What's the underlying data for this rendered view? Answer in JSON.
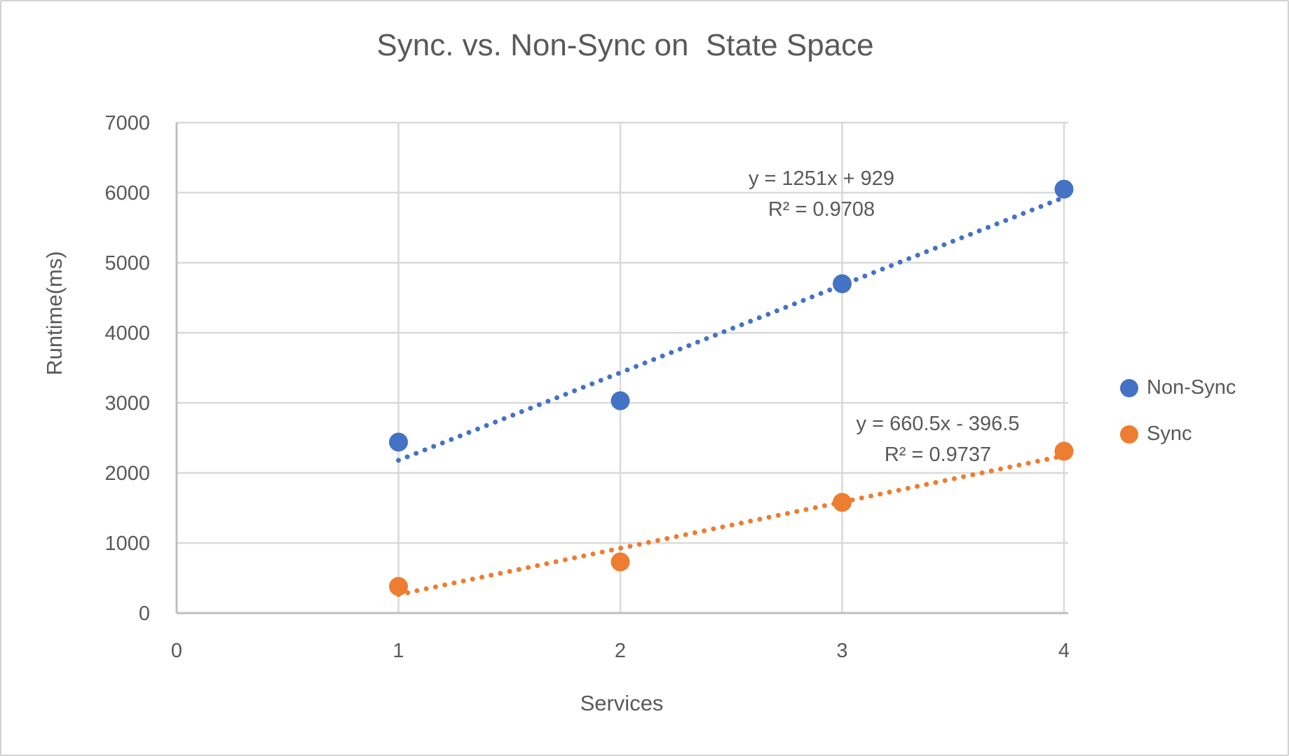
{
  "chart_data": {
    "type": "scatter",
    "title": "Sync. vs. Non-Sync on  State Space",
    "xlabel": "Services",
    "ylabel": "Runtime(ms)",
    "xlim": [
      0,
      4
    ],
    "ylim": [
      0,
      7000
    ],
    "x_ticks": [
      "0",
      "1",
      "2",
      "3",
      "4"
    ],
    "y_ticks": [
      "0",
      "1000",
      "2000",
      "3000",
      "4000",
      "5000",
      "6000",
      "7000"
    ],
    "grid": true,
    "legend_position": "right-middle",
    "series": [
      {
        "name": "Non-Sync",
        "color": "#4472C4",
        "points": [
          {
            "x": 1,
            "y": 2440
          },
          {
            "x": 2,
            "y": 3030
          },
          {
            "x": 3,
            "y": 4700
          },
          {
            "x": 4,
            "y": 6050
          }
        ],
        "trendline": {
          "type": "linear",
          "style": "dotted",
          "slope": 1251,
          "intercept": 929,
          "r_squared": 0.9708,
          "x_range": [
            1,
            4
          ],
          "equation_label": "y = 1251x + 929",
          "r2_label": "R² = 0.9708"
        }
      },
      {
        "name": "Sync",
        "color": "#ED7D31",
        "points": [
          {
            "x": 1,
            "y": 380
          },
          {
            "x": 2,
            "y": 730
          },
          {
            "x": 3,
            "y": 1580
          },
          {
            "x": 4,
            "y": 2310
          }
        ],
        "trendline": {
          "type": "linear",
          "style": "dotted",
          "slope": 660.5,
          "intercept": -396.5,
          "r_squared": 0.9737,
          "x_range": [
            1,
            4
          ],
          "equation_label": "y = 660.5x - 396.5",
          "r2_label": "R² = 0.9737"
        }
      }
    ]
  },
  "colors": {
    "text": "#595959",
    "gridline": "#D9D9D9",
    "axis_line": "#BFBFBF",
    "background": "#FFFFFF",
    "non_sync": "#4472C4",
    "sync": "#ED7D31"
  }
}
